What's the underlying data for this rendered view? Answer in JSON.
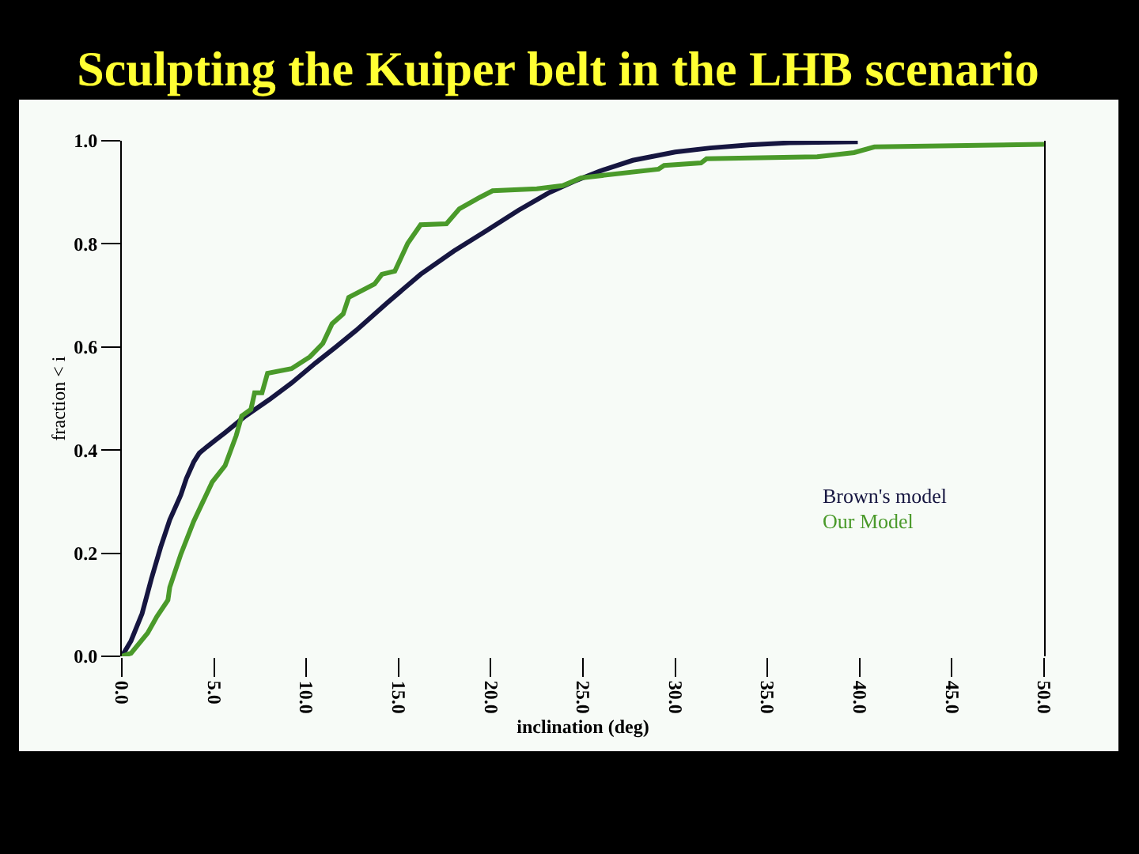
{
  "chart_data": {
    "type": "line",
    "title": "Sculpting the Kuiper belt in the LHB scenario",
    "xlabel": "inclination (deg)",
    "ylabel": "fraction < i",
    "xlim": [
      0,
      50
    ],
    "ylim": [
      0,
      1
    ],
    "xticks": [
      {
        "value": 0,
        "label": "0.0"
      },
      {
        "value": 5,
        "label": "5.0"
      },
      {
        "value": 10,
        "label": "10.0"
      },
      {
        "value": 15,
        "label": "15.0"
      },
      {
        "value": 20,
        "label": "20.0"
      },
      {
        "value": 25,
        "label": "25.0"
      },
      {
        "value": 30,
        "label": "30.0"
      },
      {
        "value": 35,
        "label": "35.0"
      },
      {
        "value": 40,
        "label": "40.0"
      },
      {
        "value": 45,
        "label": "45.0"
      },
      {
        "value": 50,
        "label": "50.0"
      }
    ],
    "yticks": [
      {
        "value": 0,
        "label": "0.0"
      },
      {
        "value": 0.2,
        "label": "0.2"
      },
      {
        "value": 0.4,
        "label": "0.4"
      },
      {
        "value": 0.6,
        "label": "0.6"
      },
      {
        "value": 0.8,
        "label": "0.8"
      },
      {
        "value": 1,
        "label": "1.0"
      }
    ],
    "grid": false,
    "legend": "bottom right",
    "series": [
      {
        "name": "Brown's model",
        "color": "#161640",
        "x": [
          0,
          0.5,
          1.1,
          1.6,
          2.1,
          2.6,
          3.2,
          3.5,
          3.9,
          4.2,
          4.6,
          5.1,
          5.6,
          6.7,
          8,
          9.2,
          10.5,
          11.6,
          12.7,
          14.4,
          16.2,
          18,
          19.7,
          21.5,
          23.2,
          24.5,
          25.9,
          27.7,
          30,
          31.9,
          34,
          36.2,
          39.9
        ],
        "values": [
          0,
          0.03,
          0.083,
          0.15,
          0.211,
          0.265,
          0.313,
          0.345,
          0.377,
          0.394,
          0.406,
          0.42,
          0.434,
          0.466,
          0.498,
          0.53,
          0.569,
          0.6,
          0.632,
          0.686,
          0.741,
          0.786,
          0.824,
          0.865,
          0.9,
          0.921,
          0.941,
          0.962,
          0.978,
          0.986,
          0.992,
          0.996,
          0.998
        ]
      },
      {
        "name": "Our Model",
        "color": "#4a9a2a",
        "x": [
          0,
          0.5,
          1.4,
          1.9,
          2.5,
          2.6,
          3.2,
          3.9,
          4.4,
          4.9,
          5.6,
          6.2,
          6.5,
          7,
          7.2,
          7.6,
          7.9,
          9.2,
          10.2,
          10.9,
          11.4,
          12,
          12.3,
          13.7,
          14.1,
          14.8,
          15.5,
          16.2,
          17.6,
          18.3,
          19.4,
          20.1,
          22.5,
          23.9,
          24.9,
          29.1,
          29.4,
          31.4,
          31.7,
          37.7,
          39.7,
          40.8,
          50
        ],
        "values": [
          0,
          0.006,
          0.045,
          0.077,
          0.109,
          0.134,
          0.198,
          0.262,
          0.3,
          0.338,
          0.37,
          0.428,
          0.466,
          0.479,
          0.511,
          0.511,
          0.549,
          0.558,
          0.581,
          0.607,
          0.645,
          0.664,
          0.696,
          0.722,
          0.741,
          0.747,
          0.801,
          0.837,
          0.839,
          0.868,
          0.89,
          0.903,
          0.907,
          0.913,
          0.928,
          0.945,
          0.952,
          0.957,
          0.965,
          0.969,
          0.977,
          0.988,
          0.993
        ]
      }
    ]
  }
}
